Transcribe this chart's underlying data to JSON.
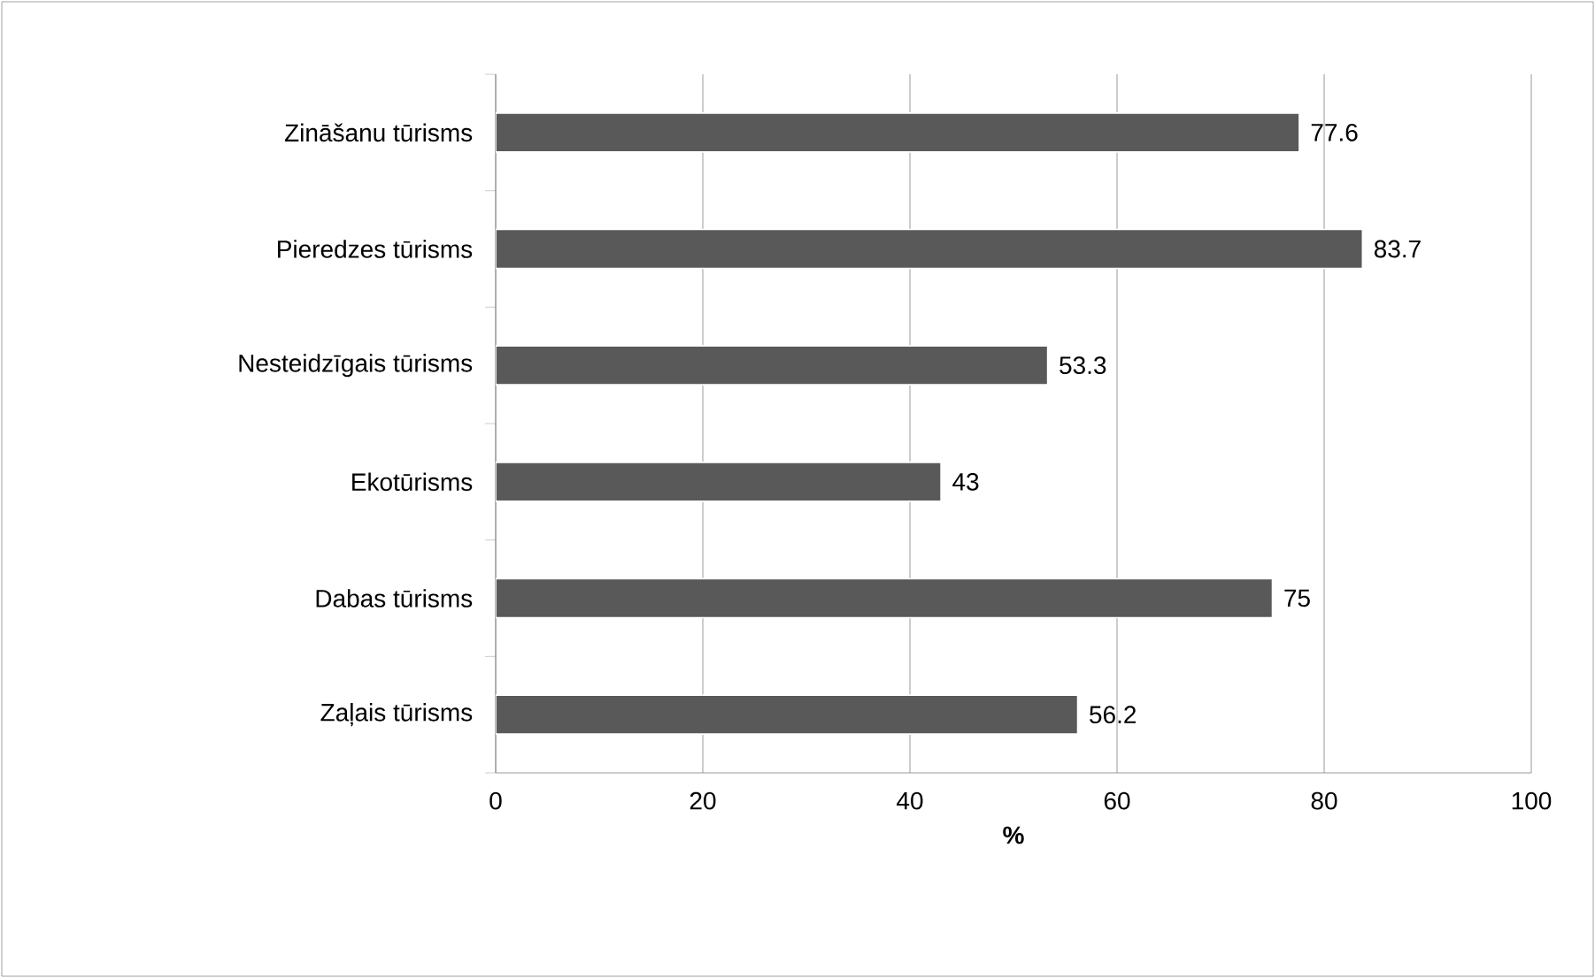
{
  "chart_data": {
    "type": "bar",
    "orientation": "horizontal",
    "categories": [
      "Zināšanu tūrisms",
      "Pieredzes tūrisms",
      "Nesteidzīgais tūrisms",
      "Ekotūrisms",
      "Dabas tūrisms",
      "Zaļais tūrisms"
    ],
    "values": [
      77.6,
      83.7,
      53.3,
      43,
      75,
      56.2
    ],
    "color": "#595959",
    "xlim": [
      0,
      100
    ],
    "xticks": [
      0,
      20,
      40,
      60,
      80,
      100
    ],
    "xlabel": "%",
    "grid": "x",
    "data_labels": true
  }
}
